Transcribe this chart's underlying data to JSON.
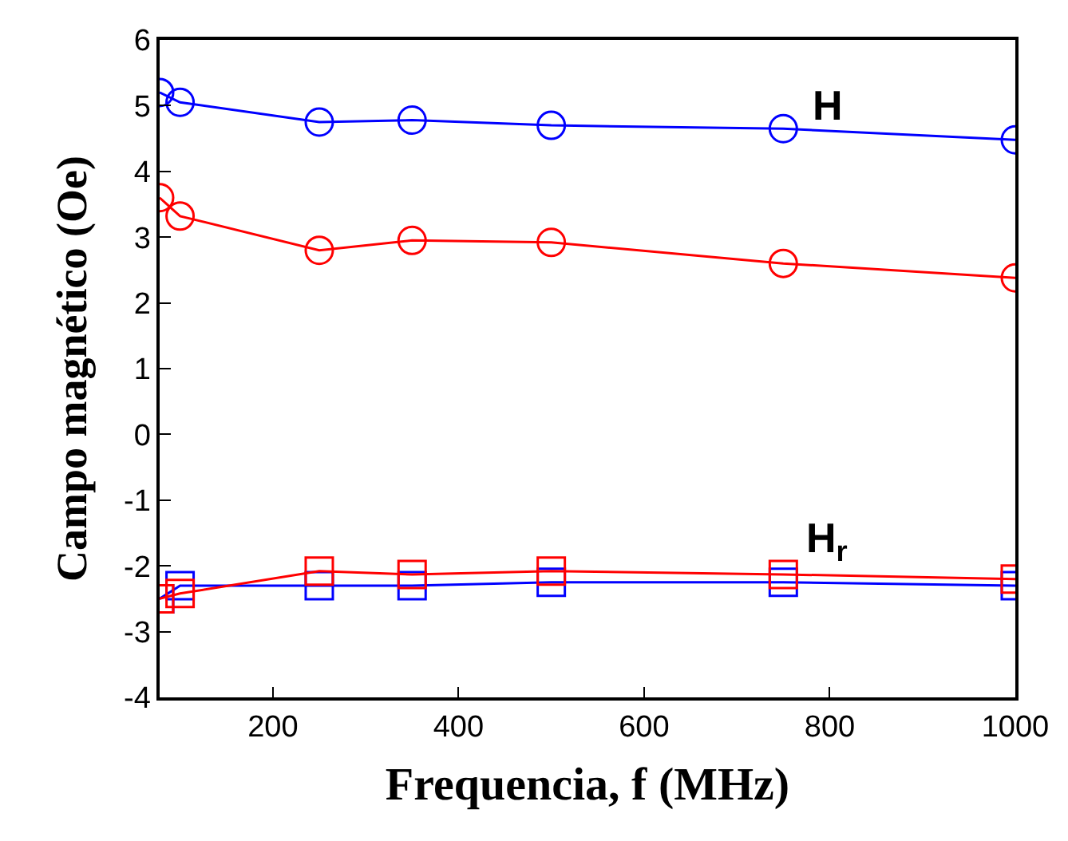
{
  "chart_data": {
    "type": "line",
    "xlabel": "Frequencia, f (MHz)",
    "ylabel": "Campo magnético (Oe)",
    "xlim": [
      78,
      1000
    ],
    "xticks": [
      200,
      400,
      600,
      800,
      1000
    ],
    "ylim": [
      -4,
      6
    ],
    "yticks": [
      -4,
      -3,
      -2,
      -1,
      0,
      1,
      2,
      3,
      4,
      5,
      6
    ],
    "line_style": "solid",
    "x": [
      78,
      100,
      250,
      350,
      500,
      750,
      1000
    ],
    "series": [
      {
        "color": "#0000ff",
        "marker": "circle",
        "values": [
          5.2,
          5.05,
          4.75,
          4.78,
          4.7,
          4.65,
          4.48
        ]
      },
      {
        "color": "#ff0000",
        "marker": "circle",
        "values": [
          3.6,
          3.32,
          2.8,
          2.95,
          2.92,
          2.6,
          2.38
        ]
      },
      {
        "color": "#0000ff",
        "marker": "square",
        "values": [
          -2.5,
          -2.3,
          -2.3,
          -2.3,
          -2.25,
          -2.25,
          -2.3
        ]
      },
      {
        "color": "#ff0000",
        "marker": "square",
        "values": [
          -2.5,
          -2.42,
          -2.08,
          -2.13,
          -2.08,
          -2.13,
          -2.2
        ]
      }
    ],
    "annotations": [
      "H",
      "H$_{r}$"
    ]
  }
}
